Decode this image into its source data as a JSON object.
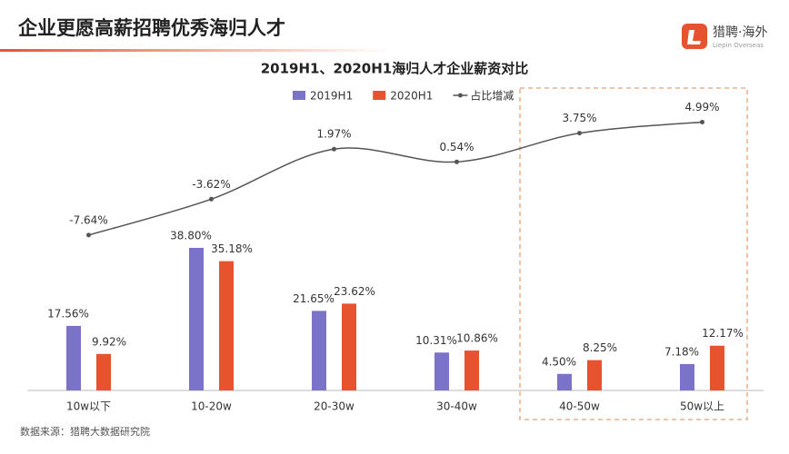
{
  "header": {
    "title": "企业更愿高薪招聘优秀海归人才",
    "logo": "猎聘·海外",
    "logo_sub": "Liepin Overseas"
  },
  "chart_data": {
    "type": "bar",
    "title": "2019H1、2020H1海归人才企业薪资对比",
    "categories": [
      "10w以下",
      "10-20w",
      "20-30w",
      "30-40w",
      "40-50w",
      "50w以上"
    ],
    "series": [
      {
        "name": "2019H1",
        "color": "#7b73c9",
        "values": [
          17.56,
          38.8,
          21.65,
          10.31,
          4.5,
          7.18
        ],
        "value_labels": [
          "17.56%",
          "38.80%",
          "21.65%",
          "10.31%",
          "4.50%",
          "7.18%"
        ]
      },
      {
        "name": "2020H1",
        "color": "#e8532f",
        "values": [
          9.92,
          35.18,
          23.62,
          10.86,
          8.25,
          12.17
        ],
        "value_labels": [
          "9.92%",
          "35.18%",
          "23.62%",
          "10.86%",
          "8.25%",
          "12.17%"
        ]
      },
      {
        "name": "占比增减",
        "type": "line",
        "axis": "y2",
        "color": "#555555",
        "values": [
          -7.64,
          -3.62,
          1.97,
          0.54,
          3.75,
          4.99
        ],
        "value_labels": [
          "-7.64%",
          "-3.62%",
          "1.97%",
          "0.54%",
          "3.75%",
          "4.99%"
        ]
      }
    ],
    "ylim": [
      0,
      84
    ],
    "y2lim": [
      -25,
      9.5
    ],
    "legend": "top",
    "grid": false
  },
  "source": "数据来源：猎聘大数据研究院"
}
